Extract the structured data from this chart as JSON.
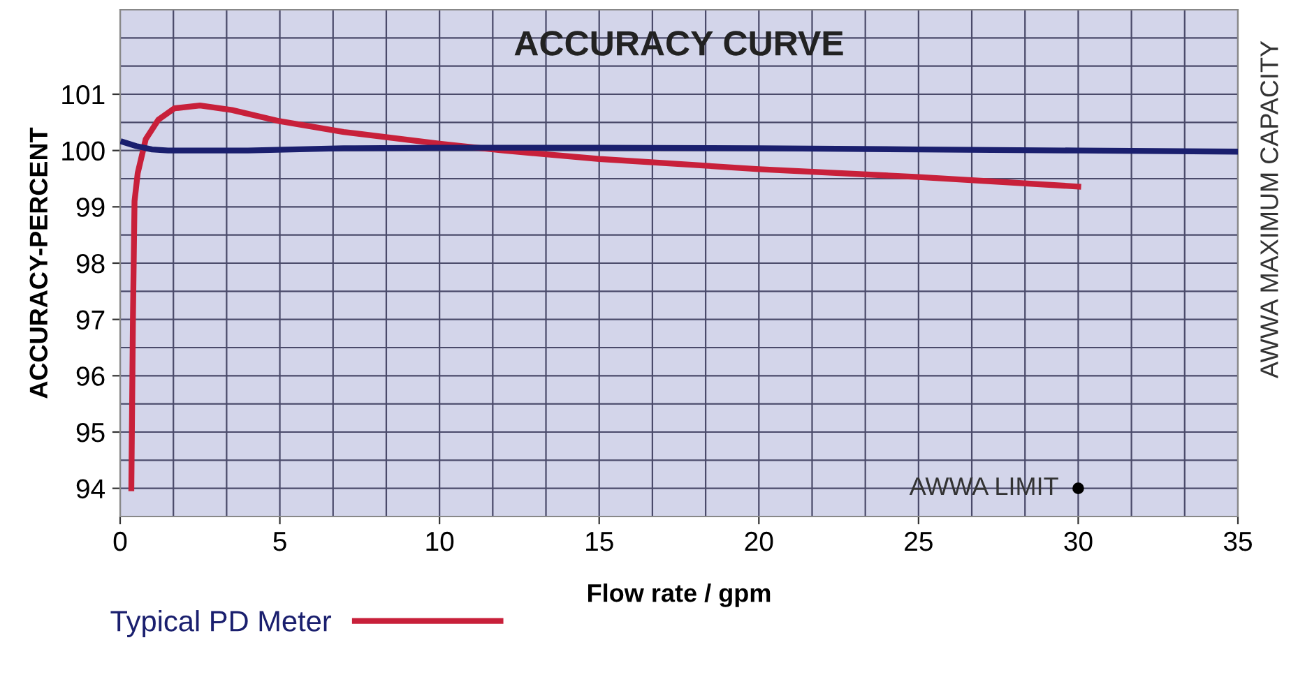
{
  "chart_data": {
    "type": "line",
    "title": "ACCURACY CURVE",
    "xlabel": "Flow rate / gpm",
    "ylabel": "ACCURACY-PERCENT",
    "xlim": [
      0,
      35
    ],
    "xticks": [
      0,
      5,
      10,
      15,
      20,
      25,
      30,
      35
    ],
    "ylim": [
      93.5,
      102.5
    ],
    "yticks": [
      94,
      95,
      96,
      97,
      98,
      99,
      100,
      101
    ],
    "grid": true,
    "legend": "bottom",
    "marker": "none",
    "line_style": "solid",
    "series": [
      {
        "name": "Typical PD Meter",
        "color": "#c8203a",
        "x": [
          0.35,
          0.4,
          0.45,
          0.55,
          0.8,
          1.2,
          1.7,
          2.5,
          3.5,
          5,
          7,
          10,
          12,
          15,
          20,
          25,
          30
        ],
        "values": [
          94,
          97,
          99.1,
          99.6,
          100.2,
          100.55,
          100.75,
          100.8,
          100.72,
          100.52,
          100.33,
          100.12,
          100.0,
          99.85,
          99.67,
          99.53,
          99.36
        ]
      },
      {
        "color": "#1a1f6e",
        "x": [
          0.1,
          0.5,
          1,
          1.5,
          4,
          7,
          10,
          15,
          20,
          25,
          30,
          35
        ],
        "values": [
          100.15,
          100.08,
          100.02,
          100.0,
          100.0,
          100.04,
          100.05,
          100.05,
          100.04,
          100.02,
          100.0,
          99.98
        ]
      }
    ],
    "annotations": [
      {
        "text": "AWWA LIMIT",
        "x": 30,
        "y": 94
      },
      "AWWA MAXIMUM CAPACITY"
    ]
  }
}
